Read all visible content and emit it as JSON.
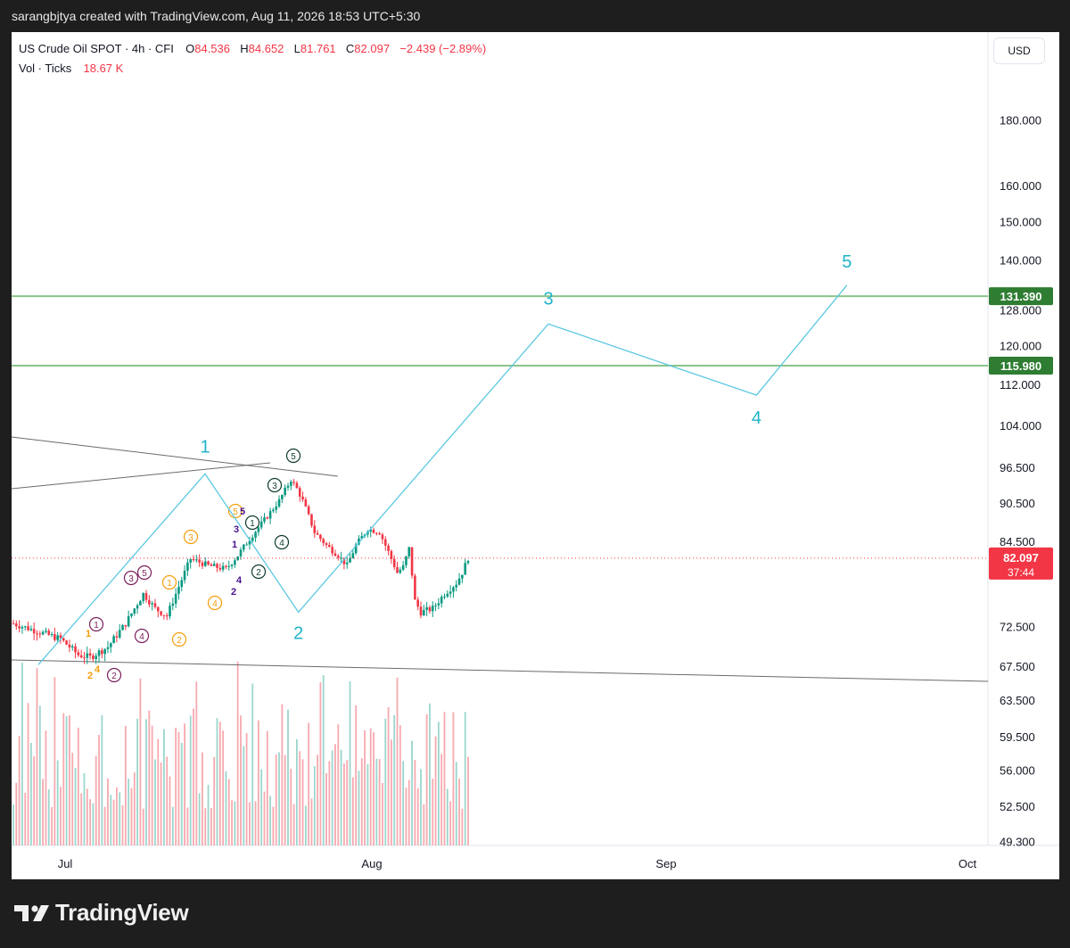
{
  "header": {
    "attribution": "sarangbjtya created with TradingView.com, Aug 11, 2026 18:53 UTC+5:30"
  },
  "legend": {
    "symbol": "US Crude Oil SPOT · 4h · CFI",
    "o_label": "O",
    "o_value": "84.536",
    "h_label": "H",
    "h_value": "84.652",
    "l_label": "L",
    "l_value": "81.761",
    "c_label": "C",
    "c_value": "82.097",
    "change": "−2.439 (−2.89%)",
    "vol_label": "Vol · Ticks",
    "vol_value": "18.67 K"
  },
  "currency_button": "USD",
  "footer": {
    "brand": "TradingView"
  },
  "chart_data": {
    "type": "candlestick",
    "y_scale": "log",
    "y_ticks": [
      "180.000",
      "160.000",
      "150.000",
      "140.000",
      "128.000",
      "120.000",
      "112.000",
      "104.000",
      "96.500",
      "90.500",
      "84.500",
      "72.500",
      "67.500",
      "63.500",
      "59.500",
      "56.000",
      "52.500",
      "49.300"
    ],
    "y_range": [
      48,
      198
    ],
    "x_ticks": [
      "Jul",
      "Aug",
      "Sep",
      "Oct"
    ],
    "colors": {
      "up": "#089981",
      "down": "#f23645",
      "wave": "#5bc8e0",
      "level": "#8bc48a",
      "last_price": "#f23645"
    },
    "price_levels": [
      {
        "value": 131.39,
        "label": "131.390"
      },
      {
        "value": 115.98,
        "label": "115.980"
      }
    ],
    "last_price": {
      "value": 82.097,
      "label": "82.097",
      "countdown": "37:44"
    },
    "projection_path": [
      {
        "t": 0.0,
        "y": 67.8
      },
      {
        "t": 0.5,
        "y": 95.5
      },
      {
        "t": 0.78,
        "y": 74.5
      },
      {
        "t": 1.6,
        "y": 125.0
      },
      {
        "t": 2.3,
        "y": 110.0
      },
      {
        "t": 2.6,
        "y": 134.0
      }
    ],
    "wave_labels": [
      {
        "label": "1",
        "t": 0.5,
        "y": 99.0
      },
      {
        "label": "2",
        "t": 0.78,
        "y": 71.5
      },
      {
        "label": "3",
        "t": 1.6,
        "y": 130.0
      },
      {
        "label": "4",
        "t": 2.3,
        "y": 106.0
      },
      {
        "label": "5",
        "t": 2.6,
        "y": 140.0
      }
    ],
    "candles_summary": {
      "start_price": 73.0,
      "end_price": 82.097,
      "period": "Jun 22 – Aug 11 2026",
      "high": 94.5,
      "low": 68.5
    },
    "volume_bars": 155
  }
}
